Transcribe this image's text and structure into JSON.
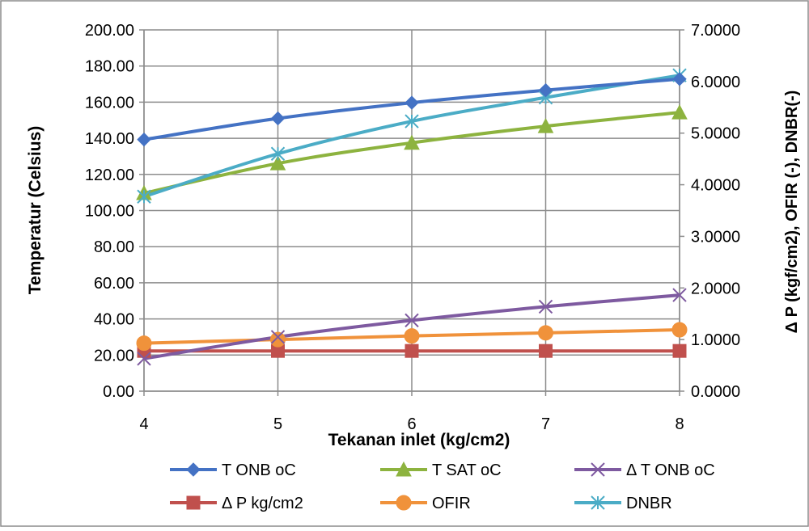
{
  "chart_data": {
    "type": "line",
    "title": "",
    "xlabel": "Tekanan inlet (kg/cm2)",
    "ylabel": "Temperatur (Celsius)",
    "y2label": "Δ P (kgf/cm2), OFIR (-), DNBR(-)",
    "x": [
      4,
      5,
      6,
      7,
      8
    ],
    "x_tick_labels": [
      "4",
      "5",
      "6",
      "7",
      "8"
    ],
    "ylim": [
      0,
      200
    ],
    "y2lim": [
      0,
      7
    ],
    "y_tick_labels": [
      "0.00",
      "20.00",
      "40.00",
      "60.00",
      "80.00",
      "100.00",
      "120.00",
      "140.00",
      "160.00",
      "180.00",
      "200.00"
    ],
    "y2_tick_labels": [
      "0.0000",
      "1.0000",
      "2.0000",
      "3.0000",
      "4.0000",
      "5.0000",
      "6.0000",
      "7.0000"
    ],
    "grid": true,
    "legend_position": "bottom",
    "series": [
      {
        "name": "T ONB oC",
        "axis": "left",
        "marker": "diamond",
        "color": "#4472C4",
        "values": [
          139.3,
          151.0,
          159.7,
          166.6,
          172.8
        ]
      },
      {
        "name": "T SAT oC",
        "axis": "left",
        "marker": "triangle",
        "color": "#8DB33F",
        "values": [
          109.6,
          126.1,
          137.5,
          146.7,
          154.3
        ]
      },
      {
        "name": "Δ T ONB oC",
        "axis": "left",
        "marker": "x",
        "color": "#7E5AA0",
        "values": [
          18.0,
          30.0,
          39.2,
          46.8,
          53.2
        ]
      },
      {
        "name": "Δ P kg/cm2",
        "axis": "right",
        "marker": "square",
        "color": "#C0504D",
        "values": [
          0.78,
          0.78,
          0.78,
          0.78,
          0.78
        ]
      },
      {
        "name": "OFIR",
        "axis": "right",
        "marker": "circle",
        "color": "#F0923B",
        "values": [
          0.93,
          1.0,
          1.07,
          1.13,
          1.19
        ]
      },
      {
        "name": "DNBR",
        "axis": "right",
        "marker": "asterisk",
        "color": "#4BACC6",
        "values": [
          3.77,
          4.6,
          5.23,
          5.69,
          6.12
        ]
      }
    ]
  }
}
